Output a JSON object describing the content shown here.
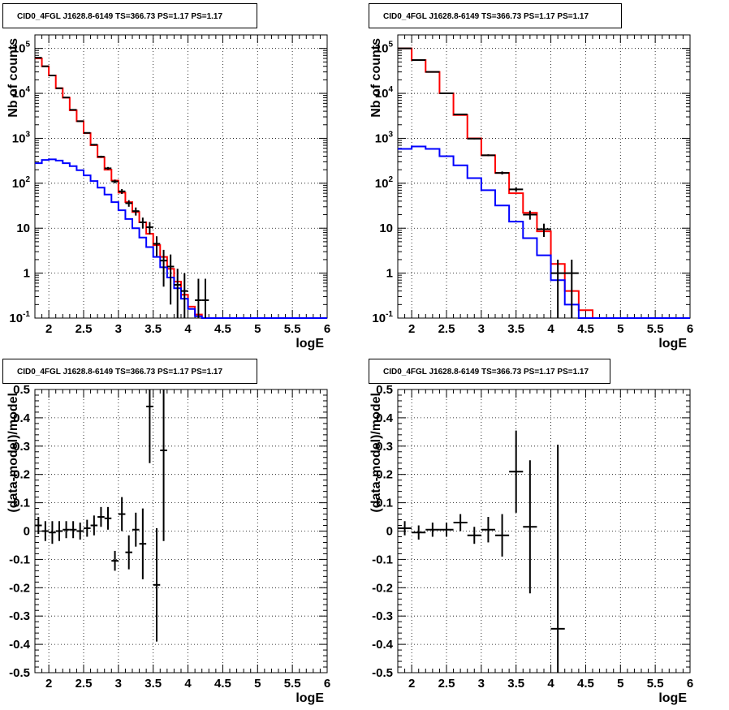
{
  "chart_data": [
    {
      "type": "line",
      "title": "CID0_4FGL J1628.8-6149 TS=366.73 PS=1.17 PS=1.17",
      "xlabel": "logE",
      "ylabel": "Nb of counts",
      "xlim": [
        1.8,
        6.0
      ],
      "ylim": [
        0.1,
        200000
      ],
      "yscale": "log",
      "grid": true,
      "xticks": [
        2,
        2.5,
        3,
        3.5,
        4,
        4.5,
        5,
        5.5,
        6
      ],
      "xtick_labels": [
        "2",
        "2.5",
        "3",
        "3.5",
        "4",
        "4.5",
        "5",
        "5.5",
        "6"
      ],
      "yticks": [
        0.1,
        1,
        10,
        100,
        1000,
        10000,
        100000
      ],
      "ytick_labels": [
        "10^-1",
        "1",
        "10",
        "10^2",
        "10^3",
        "10^4",
        "10^5"
      ],
      "series": [
        {
          "color": "#ff0000",
          "bins": [
            1.8,
            1.9,
            2.0,
            2.1,
            2.2,
            2.3,
            2.4,
            2.5,
            2.6,
            2.7,
            2.8,
            2.9,
            3.0,
            3.1,
            3.2,
            3.3,
            3.4,
            3.5,
            3.6,
            3.7,
            3.8,
            3.9,
            4.0,
            4.1,
            4.2,
            4.3,
            6.0
          ],
          "values": [
            60000,
            40000,
            25000,
            13000,
            8000,
            4200,
            2400,
            1300,
            700,
            380,
            200,
            115,
            62,
            38,
            23,
            13.5,
            7.5,
            4.2,
            2.3,
            1.25,
            0.65,
            0.33,
            0.18,
            0.12,
            0.1,
            0.1
          ]
        },
        {
          "color": "#0000ff",
          "bins": [
            1.8,
            1.9,
            2.0,
            2.1,
            2.2,
            2.3,
            2.4,
            2.5,
            2.6,
            2.7,
            2.8,
            2.9,
            3.0,
            3.1,
            3.2,
            3.3,
            3.4,
            3.5,
            3.6,
            3.7,
            3.8,
            3.9,
            4.0,
            4.1,
            4.2,
            4.3,
            6.0
          ],
          "values": [
            280,
            330,
            340,
            320,
            280,
            240,
            195,
            150,
            112,
            80,
            56,
            38,
            25,
            16,
            10,
            6.2,
            3.8,
            2.3,
            1.35,
            0.8,
            0.46,
            0.27,
            0.16,
            0.11,
            0.1,
            0.1
          ]
        },
        {
          "color": "#000000",
          "kind": "points",
          "x": [
            1.85,
            1.95,
            2.05,
            2.15,
            2.25,
            2.35,
            2.45,
            2.55,
            2.65,
            2.75,
            2.85,
            2.95,
            3.05,
            3.15,
            3.25,
            3.35,
            3.45,
            3.55,
            3.65,
            3.75,
            3.85,
            3.95,
            4.15,
            4.25
          ],
          "y": [
            62000,
            40000,
            25000,
            13000,
            8100,
            4300,
            2400,
            1320,
            720,
            390,
            215,
            110,
            66,
            36,
            24,
            13.5,
            10.5,
            4.5,
            1.9,
            1.4,
            0.55,
            0.4,
            0.25,
            0.25
          ],
          "yerr": [
            250,
            200,
            160,
            115,
            90,
            65,
            50,
            36,
            27,
            20,
            15,
            10.5,
            8.1,
            6,
            4.9,
            3.7,
            3.2,
            2.1,
            1.4,
            1.2,
            0.7,
            0.6,
            0.5,
            0.5
          ]
        }
      ]
    },
    {
      "type": "line",
      "title": "CID0_4FGL J1628.8-6149 TS=366.73 PS=1.17 PS=1.17",
      "xlabel": "logE",
      "ylabel": "Nb of counts",
      "xlim": [
        1.8,
        6.0
      ],
      "ylim": [
        0.1,
        200000
      ],
      "yscale": "log",
      "grid": true,
      "xticks": [
        2,
        2.5,
        3,
        3.5,
        4,
        4.5,
        5,
        5.5,
        6
      ],
      "xtick_labels": [
        "2",
        "2.5",
        "3",
        "3.5",
        "4",
        "4.5",
        "5",
        "5.5",
        "6"
      ],
      "yticks": [
        0.1,
        1,
        10,
        100,
        1000,
        10000,
        100000
      ],
      "ytick_labels": [
        "10^-1",
        "1",
        "10",
        "10^2",
        "10^3",
        "10^4",
        "10^5"
      ],
      "series": [
        {
          "color": "#ff0000",
          "bins": [
            1.8,
            2.0,
            2.2,
            2.4,
            2.6,
            2.8,
            3.0,
            3.2,
            3.4,
            3.6,
            3.8,
            4.0,
            4.2,
            4.4,
            4.6,
            6.0
          ],
          "values": [
            100000,
            55000,
            30000,
            10000,
            3300,
            1000,
            420,
            170,
            60,
            22,
            8.5,
            1.6,
            0.4,
            0.15,
            0.1
          ]
        },
        {
          "color": "#0000ff",
          "bins": [
            1.8,
            2.0,
            2.2,
            2.4,
            2.6,
            2.8,
            3.0,
            3.2,
            3.4,
            3.6,
            3.8,
            4.0,
            4.2,
            4.4,
            4.6,
            6.0
          ],
          "values": [
            580,
            660,
            580,
            400,
            250,
            130,
            70,
            32,
            14,
            6,
            2.5,
            0.7,
            0.2,
            0.1,
            0.1
          ]
        },
        {
          "color": "#000000",
          "kind": "points",
          "x": [
            1.9,
            2.1,
            2.3,
            2.5,
            2.7,
            2.9,
            3.1,
            3.3,
            3.5,
            3.7,
            3.9,
            4.1,
            4.3
          ],
          "y": [
            100000,
            55000,
            30000,
            10000,
            3400,
            980,
            420,
            170,
            73,
            20,
            9.5,
            1,
            1
          ],
          "yerr": [
            320,
            235,
            175,
            100,
            58,
            31,
            20.5,
            13,
            8.5,
            4.5,
            3.1,
            1,
            1
          ]
        }
      ]
    },
    {
      "type": "scatter",
      "title": "CID0_4FGL J1628.8-6149 TS=366.73 PS=1.17 PS=1.17",
      "xlabel": "logE",
      "ylabel": "(data-model)/model",
      "xlim": [
        1.8,
        6.0
      ],
      "ylim": [
        -0.5,
        0.5
      ],
      "grid": true,
      "xticks": [
        2,
        2.5,
        3,
        3.5,
        4,
        4.5,
        5,
        5.5,
        6
      ],
      "xtick_labels": [
        "2",
        "2.5",
        "3",
        "3.5",
        "4",
        "4.5",
        "5",
        "5.5",
        "6"
      ],
      "yticks": [
        -0.5,
        -0.4,
        -0.3,
        -0.2,
        -0.1,
        0,
        0.1,
        0.2,
        0.3,
        0.4,
        0.5
      ],
      "ytick_labels": [
        "-0.5",
        "-0.4",
        "-0.3",
        "-0.2",
        "-0.1",
        "0",
        "0.1",
        "0.2",
        "0.3",
        "0.4",
        "0.5"
      ],
      "series": [
        {
          "color": "#000000",
          "kind": "points",
          "x": [
            1.85,
            1.95,
            2.05,
            2.15,
            2.25,
            2.35,
            2.45,
            2.55,
            2.65,
            2.75,
            2.85,
            2.95,
            3.05,
            3.15,
            3.25,
            3.35,
            3.45,
            3.55,
            3.65
          ],
          "y": [
            0.02,
            0.0,
            -0.005,
            0.0,
            0.005,
            0.005,
            0.0,
            0.01,
            0.02,
            0.05,
            0.045,
            -0.105,
            0.06,
            -0.075,
            0.005,
            -0.045,
            0.44,
            -0.19,
            0.285
          ],
          "yerr": [
            0.03,
            0.035,
            0.04,
            0.035,
            0.03,
            0.03,
            0.03,
            0.03,
            0.035,
            0.035,
            0.04,
            0.035,
            0.06,
            0.06,
            0.06,
            0.125,
            0.2,
            0.2,
            0.32
          ]
        }
      ]
    },
    {
      "type": "scatter",
      "title": "CID0_4FGL J1628.8-6149 TS=366.73 PS=1.17 PS=1.17",
      "xlabel": "logE",
      "ylabel": "(data-model)/model",
      "xlim": [
        1.8,
        6.0
      ],
      "ylim": [
        -0.5,
        0.5
      ],
      "grid": true,
      "xticks": [
        2,
        2.5,
        3,
        3.5,
        4,
        4.5,
        5,
        5.5,
        6
      ],
      "xtick_labels": [
        "2",
        "2.5",
        "3",
        "3.5",
        "4",
        "4.5",
        "5",
        "5.5",
        "6"
      ],
      "yticks": [
        -0.5,
        -0.4,
        -0.3,
        -0.2,
        -0.1,
        0,
        0.1,
        0.2,
        0.3,
        0.4,
        0.5
      ],
      "ytick_labels": [
        "-0.5",
        "-0.4",
        "-0.3",
        "-0.2",
        "-0.1",
        "0",
        "0.1",
        "0.2",
        "0.3",
        "0.4",
        "0.5"
      ],
      "series": [
        {
          "color": "#000000",
          "kind": "points",
          "x": [
            1.9,
            2.1,
            2.3,
            2.5,
            2.7,
            2.9,
            3.1,
            3.3,
            3.5,
            3.7,
            4.1
          ],
          "y": [
            0.01,
            -0.005,
            0.005,
            0.005,
            0.03,
            -0.015,
            0.005,
            -0.015,
            0.21,
            0.015,
            -0.345
          ],
          "yerr": [
            0.025,
            0.025,
            0.025,
            0.025,
            0.03,
            0.03,
            0.045,
            0.075,
            0.145,
            0.235,
            0.65
          ]
        }
      ]
    }
  ]
}
